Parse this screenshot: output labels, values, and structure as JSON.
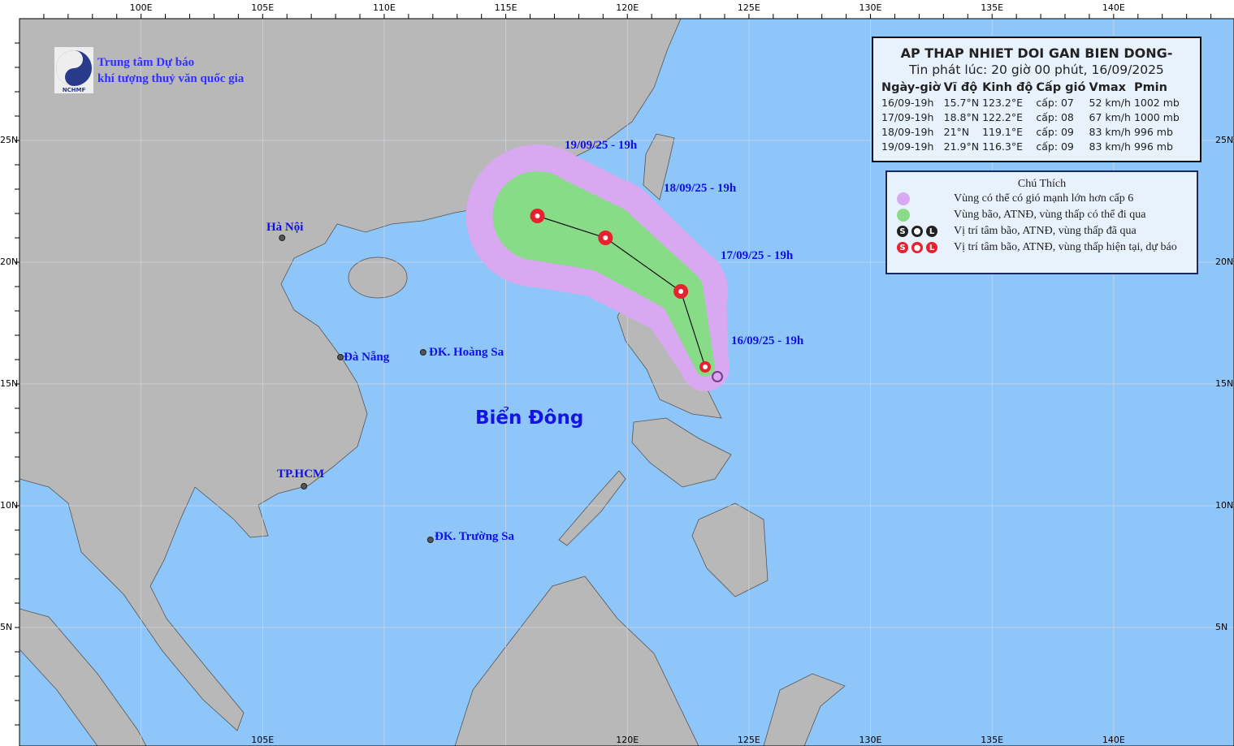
{
  "header": {
    "title": "AP THAP NHIET DOI GAN BIEN DONG-",
    "issued": "Tin phát lúc: 20 giờ 00 phút, 16/09/2025"
  },
  "organization": {
    "line1": "Trung tâm Dự báo",
    "line2": "khí tượng thuỷ văn quốc gia",
    "logo_text": "NCHMF"
  },
  "table": {
    "columns": [
      "Ngày-giờ",
      "Vĩ độ",
      "Kinh độ",
      "Cấp gió",
      "Vmax",
      "Pmin"
    ],
    "rows": [
      [
        "16/09-19h",
        "15.7°N",
        "123.2°E",
        "cấp: 07",
        "52 km/h",
        "1002 mb"
      ],
      [
        "17/09-19h",
        "18.8°N",
        "122.2°E",
        "cấp: 08",
        "67 km/h",
        "1000 mb"
      ],
      [
        "18/09-19h",
        "21°N",
        "119.1°E",
        "cấp: 09",
        "83 km/h",
        "996 mb"
      ],
      [
        "19/09-19h",
        "21.9°N",
        "116.3°E",
        "cấp: 09",
        "83 km/h",
        "996 mb"
      ]
    ]
  },
  "legend": {
    "title": "Chú Thích",
    "items": [
      {
        "label": "Vùng có thể có gió mạnh lớn hơn cấp 6",
        "color": "#d8a8f0"
      },
      {
        "label": "Vùng bão, ATNĐ, vùng thấp có thể đi qua",
        "color": "#88dc88"
      },
      {
        "label": "Vị trí tâm bão, ATNĐ, vùng thấp đã qua",
        "color": "#222222"
      },
      {
        "label": "Vị trí tâm bão, ATNĐ, vùng thấp hiện tại, dự báo",
        "color": "#e82030"
      }
    ]
  },
  "track": [
    {
      "label": "16/09/25 - 19h",
      "lat": 15.7,
      "lon": 123.2
    },
    {
      "label": "17/09/25 - 19h",
      "lat": 18.8,
      "lon": 122.2
    },
    {
      "label": "18/09/25 - 19h",
      "lat": 21.0,
      "lon": 119.1
    },
    {
      "label": "19/09/25 - 19h",
      "lat": 21.9,
      "lon": 116.3
    }
  ],
  "places": [
    {
      "name": "Hà Nội",
      "lat": 21.0,
      "lon": 105.8
    },
    {
      "name": "Đà Nẵng",
      "lat": 16.1,
      "lon": 108.2
    },
    {
      "name": "ĐK. Hoàng Sa",
      "lat": 16.3,
      "lon": 111.6
    },
    {
      "name": "TP.HCM",
      "lat": 10.8,
      "lon": 106.7
    },
    {
      "name": "ĐK. Trường Sa",
      "lat": 8.6,
      "lon": 111.9
    }
  ],
  "sea_name": "Biển Đông",
  "axes": {
    "top": [
      "100E",
      "105E",
      "110E",
      "115E",
      "120E",
      "125E",
      "130E",
      "135E",
      "140E"
    ],
    "bottom": [
      "105E",
      "120E",
      "125E",
      "130E",
      "135E",
      "140E"
    ],
    "left": [
      "25N",
      "20N",
      "15N",
      "10N",
      "5N"
    ],
    "right": [
      "25N",
      "20N",
      "15N",
      "10N",
      "5N"
    ]
  },
  "colors": {
    "land": "#b8b8b8",
    "sea": "#8ec6fa",
    "label": "#1010e8"
  }
}
